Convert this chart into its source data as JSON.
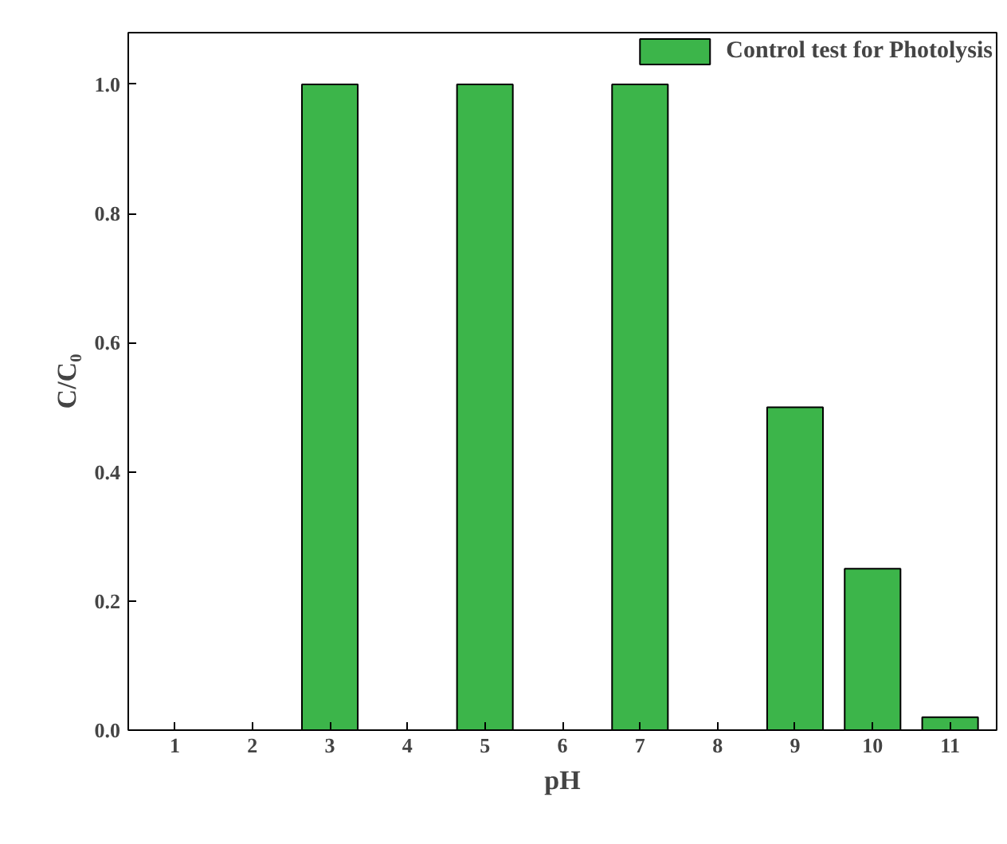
{
  "chart_data": {
    "type": "bar",
    "xlabel": "pH",
    "ylabel": "C/C₀",
    "categories": [
      "1",
      "2",
      "3",
      "4",
      "5",
      "6",
      "7",
      "8",
      "9",
      "10",
      "11"
    ],
    "series": [
      {
        "name": "Control test for Photolysis",
        "color": "#3cb54a",
        "values": [
          null,
          null,
          1.0,
          null,
          1.0,
          null,
          1.0,
          null,
          0.5,
          0.25,
          0.02
        ]
      }
    ],
    "ylim": [
      0,
      1.08
    ],
    "yticks": [
      {
        "value": 0,
        "label": "0.0"
      },
      {
        "value": 0.2,
        "label": "0.2"
      },
      {
        "value": 0.4,
        "label": "0.4"
      },
      {
        "value": 0.6,
        "label": "0.6"
      },
      {
        "value": 0.8,
        "label": "0.8"
      },
      {
        "value": 1,
        "label": "1.0"
      }
    ],
    "grid": false,
    "legend": "top right"
  }
}
